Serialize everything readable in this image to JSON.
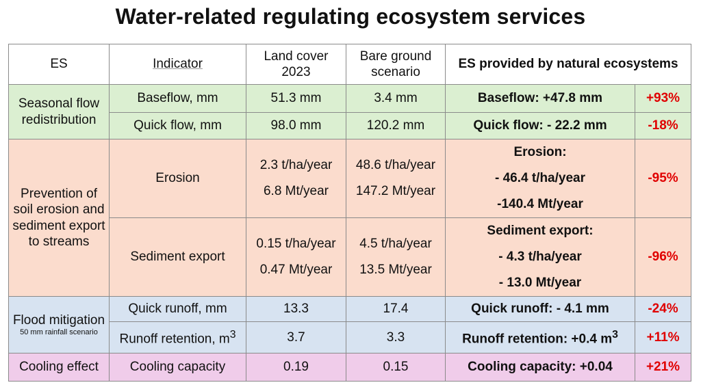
{
  "title": "Water-related regulating ecosystem services",
  "headers": {
    "es": "ES",
    "indicator": "Indicator",
    "land_cover": "Land cover 2023",
    "bare_ground": "Bare ground scenario",
    "provided": "ES provided by natural ecosystems"
  },
  "groups": {
    "seasonal": "Seasonal flow redistribution",
    "erosion": "Prevention of soil erosion and sediment export to streams",
    "flood": "Flood mitigation",
    "flood_note": "50 mm rainfall scenario",
    "cooling": "Cooling effect"
  },
  "rows": [
    {
      "indicator": "Baseflow, mm",
      "land": "51.3 mm",
      "bare": "3.4 mm",
      "provided": "Baseflow: +47.8 mm",
      "pct": "+93%"
    },
    {
      "indicator": "Quick flow, mm",
      "land": "98.0 mm",
      "bare": "120.2 mm",
      "provided": "Quick flow: - 22.2 mm",
      "pct": "-18%"
    },
    {
      "indicator": "Erosion",
      "land1": "2.3 t/ha/year",
      "land2": "6.8 Mt/year",
      "bare1": "48.6 t/ha/year",
      "bare2": "147.2 Mt/year",
      "provided1": "Erosion:",
      "provided2": "- 46.4 t/ha/year",
      "provided3": "-140.4 Mt/year",
      "pct": "-95%"
    },
    {
      "indicator": "Sediment export",
      "land1": "0.15 t/ha/year",
      "land2": "0.47 Mt/year",
      "bare1": "4.5 t/ha/year",
      "bare2": "13.5 Mt/year",
      "provided1": "Sediment export:",
      "provided2": "- 4.3 t/ha/year",
      "provided3": "- 13.0 Mt/year",
      "pct": "-96%"
    },
    {
      "indicator": "Quick runoff, mm",
      "land": "13.3",
      "bare": "17.4",
      "provided": "Quick runoff: - 4.1 mm",
      "pct": "-24%"
    },
    {
      "indicator": "Runoff retention, m",
      "indicator_sup": "3",
      "land": "3.7",
      "bare": "3.3",
      "provided": "Runoff retention: +0.4 m",
      "provided_sup": "3",
      "pct": "+11%"
    },
    {
      "indicator": "Cooling capacity",
      "land": "0.19",
      "bare": "0.15",
      "provided": "Cooling capacity: +0.04",
      "pct": "+21%"
    }
  ]
}
